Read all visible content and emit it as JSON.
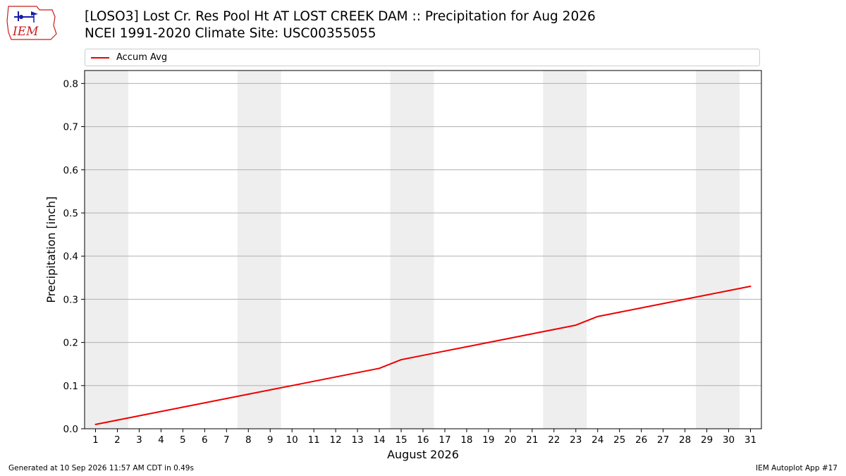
{
  "header": {
    "title_line1": "[LOSO3] Lost Cr. Res Pool Ht  AT LOST CREEK DAM :: Precipitation for Aug 2026",
    "title_line2": "NCEI 1991-2020 Climate Site: USC00355055",
    "logo_text": "IEM"
  },
  "footer": {
    "left": "Generated at 10 Sep 2026 11:57 AM CDT in 0.49s",
    "right": "IEM Autoplot App #17"
  },
  "colors": {
    "line": "#ee0000",
    "weekend_band": "#eeeeee",
    "grid": "#b0b0b0",
    "logo": "#c81e1e"
  },
  "chart_data": {
    "type": "line",
    "xlabel": "August 2026",
    "ylabel": "Precipitation [inch]",
    "xlim": [
      0.5,
      31.5
    ],
    "ylim": [
      0,
      0.83
    ],
    "x": [
      1,
      2,
      3,
      4,
      5,
      6,
      7,
      8,
      9,
      10,
      11,
      12,
      13,
      14,
      15,
      16,
      17,
      18,
      19,
      20,
      21,
      22,
      23,
      24,
      25,
      26,
      27,
      28,
      29,
      30,
      31
    ],
    "x_ticks": [
      "1",
      "2",
      "3",
      "4",
      "5",
      "6",
      "7",
      "8",
      "9",
      "10",
      "11",
      "12",
      "13",
      "14",
      "15",
      "16",
      "17",
      "18",
      "19",
      "20",
      "21",
      "22",
      "23",
      "24",
      "25",
      "26",
      "27",
      "28",
      "29",
      "30",
      "31"
    ],
    "y_ticks": [
      0.0,
      0.1,
      0.2,
      0.3,
      0.4,
      0.5,
      0.6,
      0.7,
      0.8
    ],
    "y_tick_labels": [
      "0.0",
      "0.1",
      "0.2",
      "0.3",
      "0.4",
      "0.5",
      "0.6",
      "0.7",
      "0.8"
    ],
    "grid": "horizontal",
    "shaded_day_ranges": [
      [
        0.5,
        2.5
      ],
      [
        7.5,
        9.5
      ],
      [
        14.5,
        16.5
      ],
      [
        21.5,
        23.5
      ],
      [
        28.5,
        30.5
      ]
    ],
    "legend_placement": "top",
    "series": [
      {
        "name": "Accum Avg",
        "values": [
          0.01,
          0.02,
          0.03,
          0.04,
          0.05,
          0.06,
          0.07,
          0.08,
          0.09,
          0.1,
          0.11,
          0.12,
          0.13,
          0.14,
          0.16,
          0.17,
          0.18,
          0.19,
          0.2,
          0.21,
          0.22,
          0.23,
          0.24,
          0.26,
          0.27,
          0.28,
          0.29,
          0.3,
          0.31,
          0.32,
          0.33
        ]
      }
    ]
  }
}
